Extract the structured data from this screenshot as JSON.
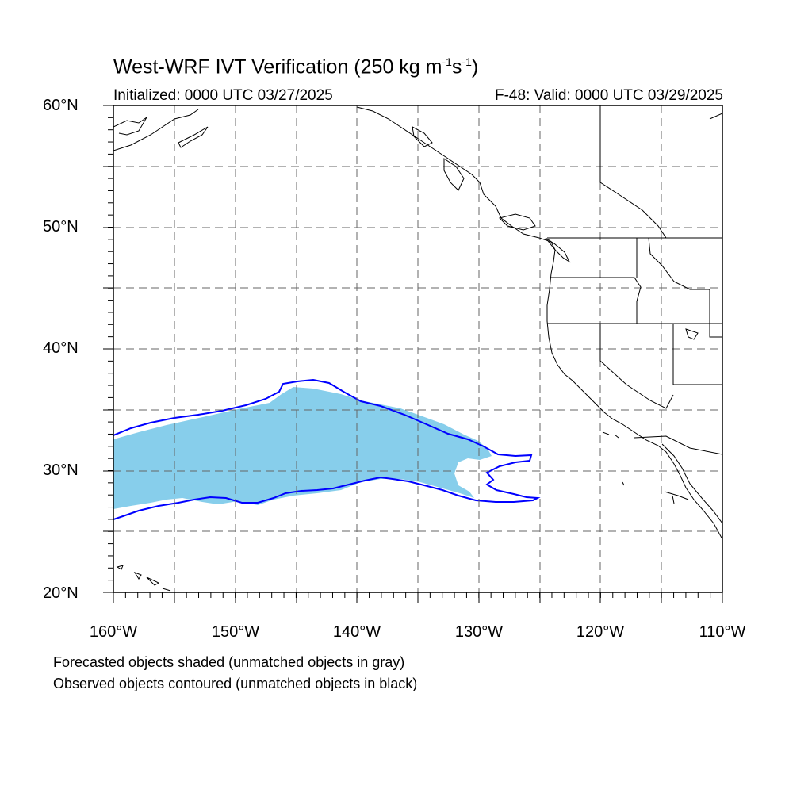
{
  "title": {
    "main": "West-WRF IVT Verification (250 kg m",
    "exp1": "-1",
    "mid": "s",
    "exp2": "-1",
    "end": ")"
  },
  "subtitle_left": "Initialized: 0000 UTC 03/27/2025",
  "subtitle_right": "F-48: Valid: 0000 UTC 03/29/2025",
  "map": {
    "lon_range": [
      -160,
      -110
    ],
    "lat_range": [
      20,
      60
    ],
    "grid_lines": "dashed",
    "lat_labels": [
      "60°N",
      "50°N",
      "40°N",
      "30°N",
      "20°N"
    ],
    "lon_labels": [
      "160°W",
      "150°W",
      "140°W",
      "130°W",
      "120°W",
      "110°W"
    ],
    "forecast_color": "#87CEEB",
    "observed_color": "#0000FF",
    "coastline_color": "#000000"
  },
  "notes": [
    "Forecasted objects shaded (unmatched objects in gray)",
    "Observed objects contoured (unmatched objects in black)"
  ]
}
